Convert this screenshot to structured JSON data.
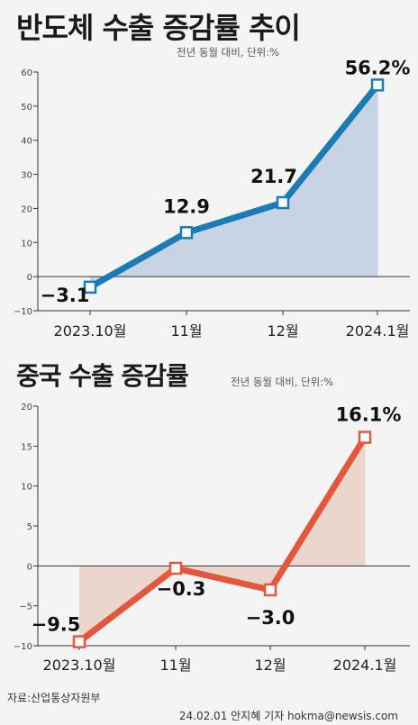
{
  "titles": {
    "chart1": "반도체 수출 증감률 추이",
    "chart2": "중국 수출 증감률"
  },
  "units": {
    "chart1": "전년 동월 대비, 단위:%",
    "chart2": "전년 동월 대비, 단위:%"
  },
  "footer": {
    "source": "자료:산업통상자원부",
    "credit": "24.02.01 안지혜 기자 hokma@newsis.com"
  },
  "colors": {
    "line1": "#1a7bb5",
    "fill1": "#c8d4e4",
    "line2": "#e3573c",
    "fill2": "#ead6cc"
  },
  "chart_data": [
    {
      "type": "area",
      "title": "반도체 수출 증감률 추이",
      "subtitle": "전년 동월 대비, 단위:%",
      "categories": [
        "2023.10월",
        "11월",
        "12월",
        "2024.1월"
      ],
      "values": [
        -3.1,
        12.9,
        21.7,
        56.2
      ],
      "value_labels": [
        "−3.1",
        "12.9",
        "21.7",
        "56.2%"
      ],
      "yticks": [
        "60",
        "50",
        "40",
        "30",
        "20",
        "10",
        "0",
        "−10"
      ],
      "ylim": [
        -10,
        60
      ],
      "grid": false
    },
    {
      "type": "area",
      "title": "중국 수출 증감률",
      "subtitle": "전년 동월 대비, 단위:%",
      "categories": [
        "2023.10월",
        "11월",
        "12월",
        "2024.1월"
      ],
      "values": [
        -9.5,
        -0.3,
        -3.0,
        16.1
      ],
      "value_labels": [
        "−9.5",
        "−0.3",
        "−3.0",
        "16.1%"
      ],
      "yticks": [
        "20",
        "15",
        "10",
        "5",
        "0",
        "−5",
        "−10"
      ],
      "ylim": [
        -10,
        20
      ],
      "grid": false
    }
  ]
}
